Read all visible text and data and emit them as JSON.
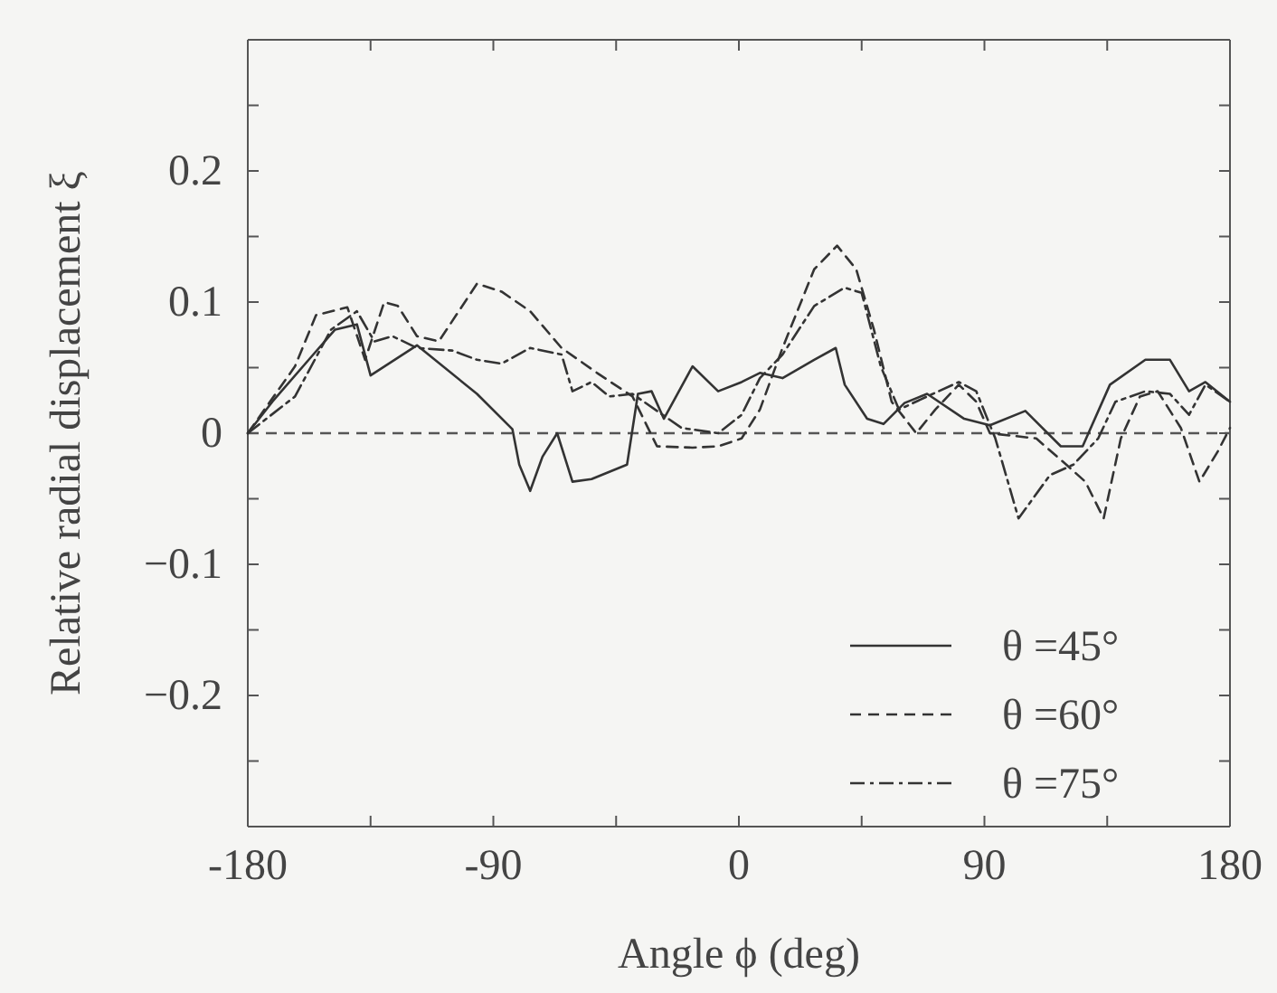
{
  "chart_data": {
    "type": "line",
    "xlabel": "Angle ϕ  (deg)",
    "ylabel": "Relative radial displacement  ξ",
    "xlim": [
      -180,
      180
    ],
    "xticks": [
      -180,
      {
        "value": -135,
        "label": null
      },
      -90,
      {
        "value": -45,
        "label": null
      },
      0,
      {
        "value": 45,
        "label": null
      },
      90,
      {
        "value": 135,
        "label": null
      },
      180
    ],
    "ylim": [
      -0.3,
      0.3
    ],
    "yticks": [
      {
        "value": -0.3,
        "label": null
      },
      {
        "value": -0.25,
        "label": null
      },
      {
        "value": -0.2,
        "label": "−0.2"
      },
      {
        "value": -0.15,
        "label": null
      },
      {
        "value": -0.1,
        "label": "−0.1"
      },
      {
        "value": -0.05,
        "label": null
      },
      0,
      {
        "value": 0.05,
        "label": null
      },
      0.1,
      {
        "value": 0.15,
        "label": null
      },
      0.2,
      {
        "value": 0.25,
        "label": null
      },
      {
        "value": 0.3,
        "label": null
      }
    ],
    "grid": false,
    "legend": "bottom right",
    "marker": "none",
    "ref_lines": [
      {
        "axis": "y",
        "value": 0,
        "line_style": "dashed",
        "color": "#555555"
      }
    ],
    "series": [
      {
        "name": "θ =45°",
        "color": "#333333",
        "line_style": "solid",
        "x": [
          -180,
          -171,
          -156,
          -148,
          -140,
          -135,
          -118,
          -96,
          -83,
          -80.5,
          -76.5,
          -72,
          -66.6,
          -61,
          -54,
          -41,
          -37,
          -32,
          -27.5,
          -17,
          -7.6,
          1,
          7.7,
          16,
          27.6,
          35.5,
          38.8,
          47,
          53,
          60.7,
          69,
          82.6,
          92,
          105,
          118,
          126,
          136,
          149,
          158,
          165,
          171,
          180
        ],
        "values": [
          0,
          0.024,
          0.06,
          0.079,
          0.083,
          0.044,
          0.067,
          0.03,
          0.003,
          -0.024,
          -0.044,
          -0.018,
          0,
          -0.037,
          -0.035,
          -0.024,
          0.03,
          0.032,
          0.011,
          0.051,
          0.032,
          0.039,
          0.046,
          0.042,
          0.056,
          0.065,
          0.037,
          0.011,
          0.007,
          0.023,
          0.03,
          0.011,
          0.006,
          0.017,
          -0.01,
          -0.01,
          0.037,
          0.056,
          0.056,
          0.032,
          0.039,
          0.024
        ]
      },
      {
        "name": "θ =60°",
        "color": "#333333",
        "line_style": "dashed",
        "x": [
          -180,
          -162.7,
          -155,
          -143.5,
          -137,
          -130,
          -125,
          -118,
          -110,
          -96,
          -87,
          -76.5,
          -65,
          -52,
          -39,
          -30,
          -17,
          -7.6,
          1,
          7.7,
          16,
          27.6,
          36,
          43,
          49.5,
          56,
          65,
          72,
          80.6,
          87,
          92,
          109,
          120,
          127,
          133.7,
          140,
          147,
          153.5,
          162,
          168.8,
          175.5,
          180
        ],
        "values": [
          0,
          0.051,
          0.09,
          0.096,
          0.056,
          0.1,
          0.097,
          0.074,
          0.07,
          0.114,
          0.108,
          0.093,
          0.065,
          0.046,
          0.028,
          -0.01,
          -0.011,
          -0.01,
          -0.004,
          0.018,
          0.065,
          0.125,
          0.143,
          0.125,
          0.079,
          0.024,
          0,
          0.018,
          0.037,
          0.024,
          0,
          -0.004,
          -0.024,
          -0.037,
          -0.065,
          -0.004,
          0.028,
          0.032,
          0.004,
          -0.037,
          -0.014,
          0.004
        ]
      },
      {
        "name": "θ =75°",
        "color": "#333333",
        "line_style": "dashdot",
        "x": [
          -180,
          -162.7,
          -149.5,
          -140,
          -133.6,
          -127,
          -118,
          -105,
          -96,
          -87,
          -76.5,
          -65,
          -61,
          -54,
          -47.5,
          -39,
          -30,
          -21,
          -7.6,
          1,
          7.7,
          16,
          27.6,
          38.8,
          45,
          52,
          58.7,
          69,
          80.6,
          87,
          94,
          102.5,
          114,
          122.6,
          131.7,
          138,
          149,
          158,
          165,
          171,
          180
        ],
        "values": [
          0,
          0.028,
          0.079,
          0.093,
          0.07,
          0.074,
          0.065,
          0.063,
          0.056,
          0.053,
          0.065,
          0.06,
          0.032,
          0.039,
          0.028,
          0.03,
          0.017,
          0.004,
          0,
          0.014,
          0.042,
          0.06,
          0.097,
          0.111,
          0.107,
          0.051,
          0.018,
          0.028,
          0.039,
          0.032,
          -0.004,
          -0.065,
          -0.032,
          -0.024,
          -0.004,
          0.024,
          0.032,
          0.03,
          0.014,
          0.037,
          0.024
        ]
      }
    ]
  }
}
